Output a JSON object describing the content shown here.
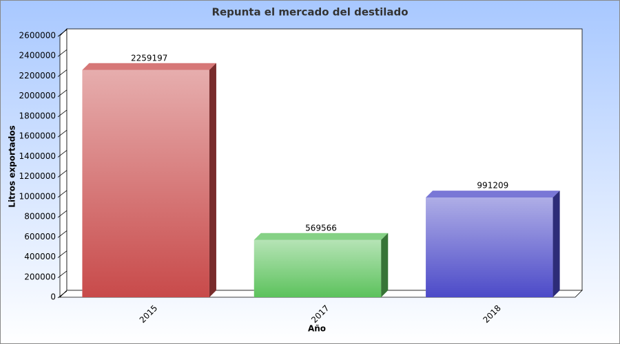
{
  "chart_data": {
    "type": "bar3d",
    "title": "Repunta el mercado del destilado",
    "x_label": "Año",
    "y_label": "Litros exportados",
    "categories": [
      "2015",
      "2017",
      "2018"
    ],
    "values": [
      2259197,
      569566,
      991209
    ],
    "colors": [
      "#c84a4a",
      "#5cc25c",
      "#4c4ac8"
    ],
    "ylim": [
      0,
      2600000
    ],
    "yticks": [
      0,
      200000,
      400000,
      600000,
      800000,
      1000000,
      1200000,
      1400000,
      1600000,
      1800000,
      2000000,
      2200000,
      2400000,
      2600000
    ]
  }
}
